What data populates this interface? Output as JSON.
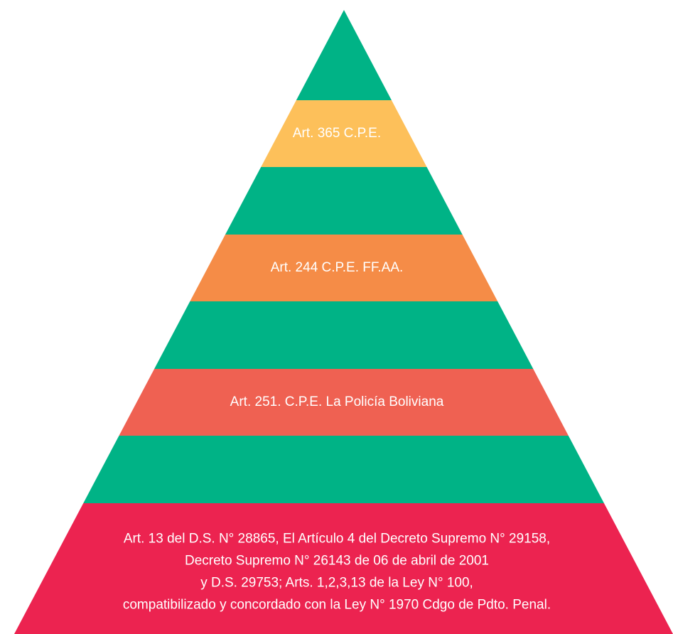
{
  "pyramid": {
    "levels": [
      {
        "color": "#00B386",
        "lines": []
      },
      {
        "color": "#FDC05A",
        "lines": [
          "Art. 365 C.P.E."
        ]
      },
      {
        "color": "#00B386",
        "lines": []
      },
      {
        "color": "#F58C47",
        "lines": [
          "Art. 244 C.P.E. FF.AA."
        ]
      },
      {
        "color": "#00B386",
        "lines": []
      },
      {
        "color": "#EF6152",
        "lines": [
          "Art. 251. C.P.E. La Policía Boliviana"
        ]
      },
      {
        "color": "#00B386",
        "lines": []
      },
      {
        "color": "#EC2350",
        "lines": [
          "Art. 13 del D.S. N° 28865, El Artículo 4 del Decreto Supremo N° 29158,",
          "Decreto Supremo N° 26143 de 06 de abril de 2001",
          "y D.S. 29753;  Arts. 1,2,3,13 de la Ley N° 100,",
          "compatibilizado y concordado con la Ley  N° 1970 Cdgo de Pdto. Penal."
        ]
      }
    ]
  }
}
